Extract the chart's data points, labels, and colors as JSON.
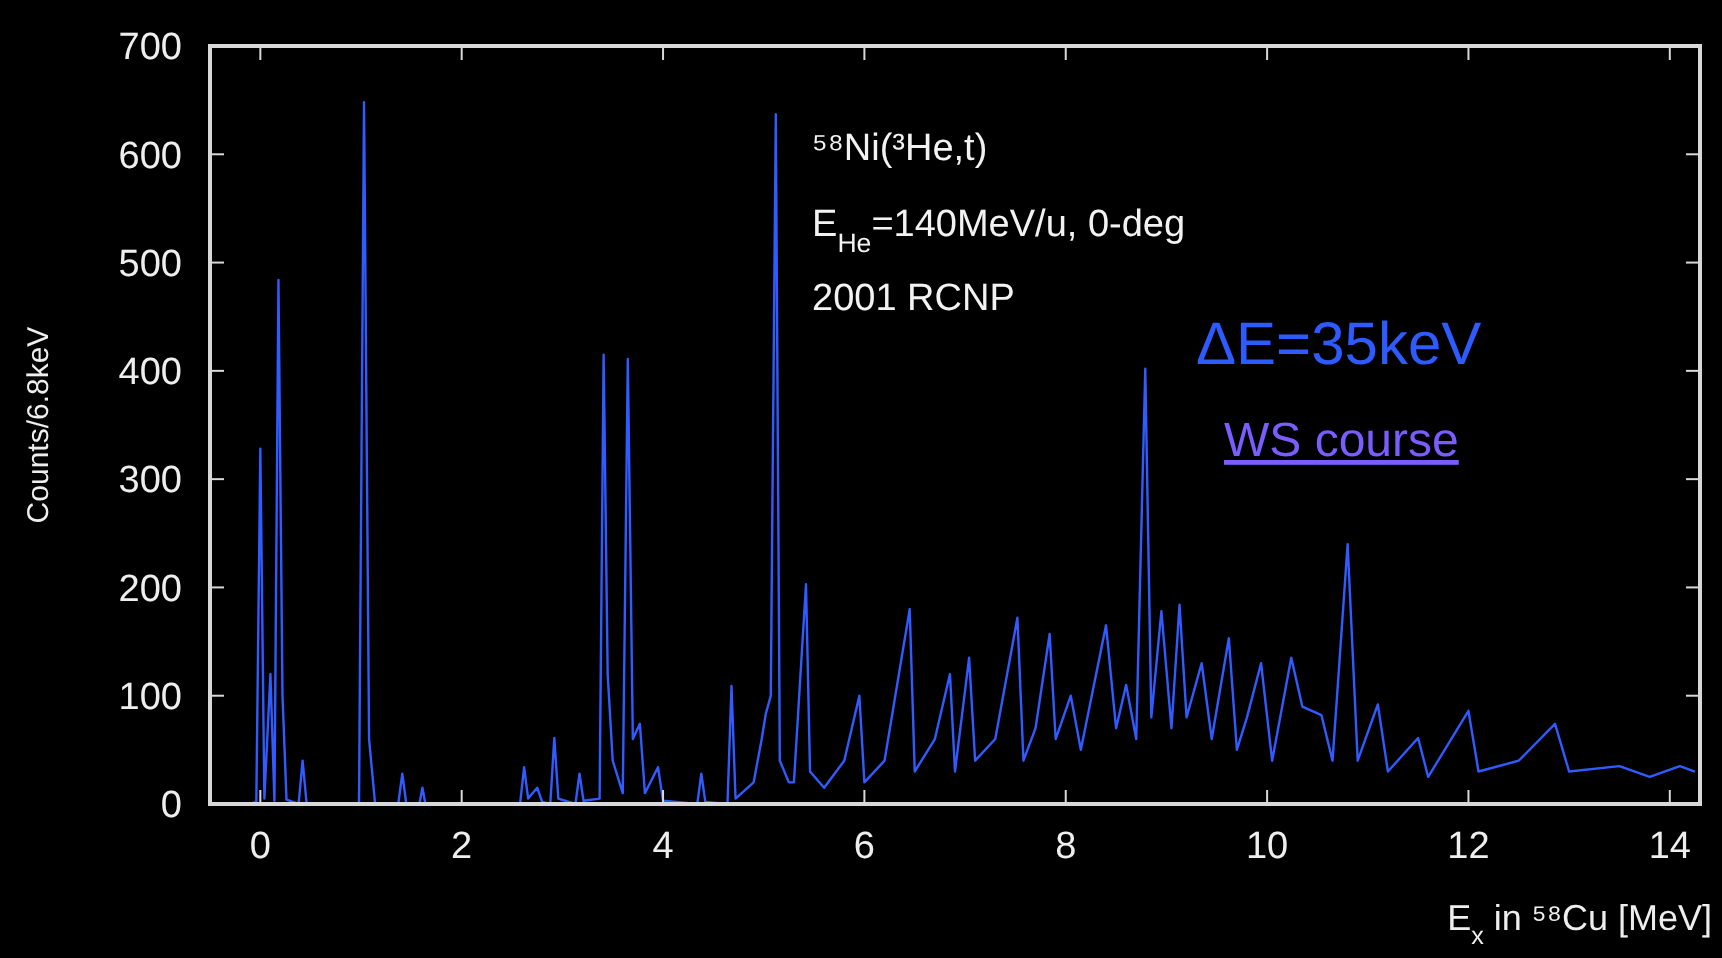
{
  "chart_data": {
    "type": "line",
    "xlabel": "E$_{x}$ in ⁵⁸Cu [MeV]",
    "ylabel": "Counts/6.8keV",
    "annotations": [
      "⁵⁸Ni(³He,t)",
      "E$_{He}$=140MeV/u, 0-deg",
      "2001 RCNP",
      "ΔE=35keV",
      "WS course"
    ],
    "xlim": [
      -0.5,
      14.3
    ],
    "ylim": [
      0,
      700
    ],
    "xticks": [
      0,
      2,
      4,
      6,
      8,
      10,
      12,
      14
    ],
    "yticks": [
      0,
      100,
      200,
      300,
      400,
      500,
      600,
      700
    ],
    "grid": false,
    "marker": "none",
    "line_style": "solid",
    "series": [
      {
        "color": "#2f5bff",
        "x": [
          -0.1,
          -0.04,
          0,
          0.04,
          0.1,
          0.14,
          0.18,
          0.22,
          0.26,
          0.38,
          0.42,
          0.46,
          0.98,
          1.03,
          1.08,
          1.14,
          1.37,
          1.41,
          1.45,
          1.58,
          1.61,
          1.64,
          2.58,
          2.62,
          2.66,
          2.75,
          2.8,
          2.88,
          2.92,
          2.96,
          3.13,
          3.17,
          3.21,
          3.37,
          3.41,
          3.45,
          3.5,
          3.6,
          3.65,
          3.7,
          3.77,
          3.82,
          3.95,
          4.0,
          4.34,
          4.38,
          4.42,
          4.64,
          4.68,
          4.72,
          4.9,
          4.98,
          5.02,
          5.07,
          5.12,
          5.16,
          5.25,
          5.3,
          5.42,
          5.46,
          5.6,
          5.8,
          5.95,
          6.0,
          6.2,
          6.45,
          6.5,
          6.7,
          6.85,
          6.9,
          7.04,
          7.1,
          7.3,
          7.52,
          7.58,
          7.7,
          7.84,
          7.9,
          8.05,
          8.15,
          8.4,
          8.5,
          8.6,
          8.7,
          8.79,
          8.85,
          8.95,
          9.05,
          9.13,
          9.2,
          9.35,
          9.45,
          9.62,
          9.7,
          9.8,
          9.94,
          10.05,
          10.24,
          10.35,
          10.54,
          10.65,
          10.8,
          10.9,
          11.1,
          11.2,
          11.5,
          11.6,
          12.0,
          12.1,
          12.5,
          12.86,
          13.0,
          13.5,
          13.8,
          14.1,
          14.25
        ],
        "values": [
          0,
          2,
          328,
          5,
          120,
          3,
          484,
          100,
          4,
          0,
          40,
          0,
          0,
          648,
          60,
          0,
          0,
          28,
          0,
          0,
          15,
          0,
          0,
          34,
          5,
          15,
          2,
          0,
          61,
          5,
          0,
          28,
          3,
          5,
          415,
          120,
          40,
          10,
          411,
          60,
          74,
          10,
          34,
          3,
          0,
          28,
          2,
          0,
          109,
          5,
          20,
          60,
          83,
          100,
          637,
          40,
          20,
          20,
          203,
          30,
          15,
          40,
          100,
          20,
          40,
          180,
          30,
          60,
          120,
          30,
          135,
          40,
          60,
          172,
          40,
          70,
          157,
          60,
          100,
          50,
          165,
          70,
          110,
          60,
          402,
          80,
          178,
          70,
          184,
          80,
          130,
          60,
          153,
          50,
          80,
          130,
          40,
          135,
          90,
          82,
          40,
          240,
          40,
          92,
          30,
          61,
          25,
          86,
          30,
          40,
          74,
          30,
          35,
          25,
          35,
          30
        ]
      }
    ]
  }
}
